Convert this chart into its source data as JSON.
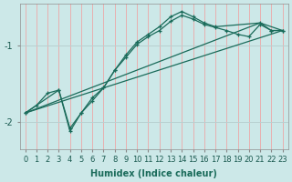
{
  "bg_color": "#cce8e8",
  "vgrid_color": "#e8b0b0",
  "hgrid_color": "#b8d0d0",
  "line_color": "#1a6b5a",
  "xlabel": "Humidex (Indice chaleur)",
  "yticks": [
    -2,
    -1
  ],
  "xlim": [
    -0.5,
    23.5
  ],
  "ylim": [
    -2.35,
    -0.45
  ],
  "line1_x": [
    0,
    1,
    2,
    3,
    4,
    5,
    6,
    7,
    8,
    9,
    10,
    11,
    12,
    13,
    14,
    15,
    16,
    17,
    18,
    19,
    20,
    21,
    22,
    23
  ],
  "line1_y": [
    -1.88,
    -1.78,
    -1.62,
    -1.58,
    -2.08,
    -1.88,
    -1.72,
    -1.55,
    -1.32,
    -1.15,
    -0.98,
    -0.88,
    -0.8,
    -0.68,
    -0.6,
    -0.65,
    -0.72,
    -0.76,
    -0.8,
    -0.85,
    -0.88,
    -0.72,
    -0.8,
    -0.8
  ],
  "line2_x": [
    0,
    3,
    4,
    5,
    6,
    7,
    8,
    9,
    10,
    11,
    12,
    13,
    14,
    15,
    16,
    17,
    21,
    22,
    23
  ],
  "line2_y": [
    -1.88,
    -1.58,
    -2.12,
    -1.88,
    -1.68,
    -1.55,
    -1.32,
    -1.12,
    -0.95,
    -0.85,
    -0.75,
    -0.62,
    -0.55,
    -0.62,
    -0.7,
    -0.75,
    -0.7,
    -0.8,
    -0.8
  ],
  "line3_x": [
    0,
    23
  ],
  "line3_y": [
    -1.88,
    -0.8
  ],
  "line4_x": [
    0,
    21,
    23
  ],
  "line4_y": [
    -1.88,
    -0.7,
    -0.8
  ],
  "xlabel_fontsize": 7,
  "tick_fontsize": 6,
  "ytick_fontsize": 7
}
